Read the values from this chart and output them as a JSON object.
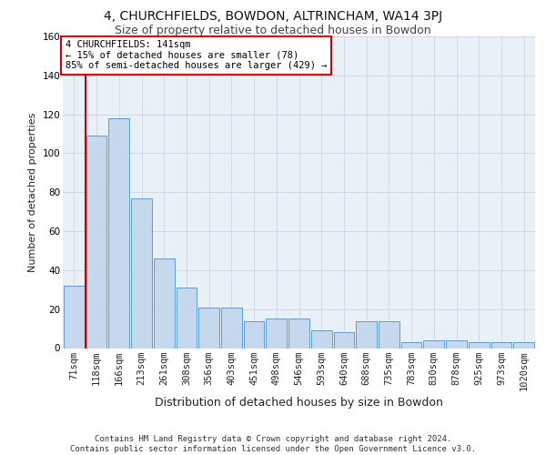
{
  "title1": "4, CHURCHFIELDS, BOWDON, ALTRINCHAM, WA14 3PJ",
  "title2": "Size of property relative to detached houses in Bowdon",
  "xlabel": "Distribution of detached houses by size in Bowdon",
  "ylabel": "Number of detached properties",
  "categories": [
    "71sqm",
    "118sqm",
    "166sqm",
    "213sqm",
    "261sqm",
    "308sqm",
    "356sqm",
    "403sqm",
    "451sqm",
    "498sqm",
    "546sqm",
    "593sqm",
    "640sqm",
    "688sqm",
    "735sqm",
    "783sqm",
    "830sqm",
    "878sqm",
    "925sqm",
    "973sqm",
    "1020sqm"
  ],
  "values": [
    32,
    109,
    118,
    77,
    46,
    31,
    21,
    21,
    14,
    15,
    15,
    9,
    8,
    14,
    14,
    3,
    4,
    4,
    3,
    3,
    3
  ],
  "bar_color": "#c5d8ed",
  "bar_edge_color": "#5b9bd5",
  "grid_color": "#d0d8e4",
  "background_color": "#eaf0f8",
  "vline_color": "#cc0000",
  "vline_pos": 0.5,
  "annotation_text": "4 CHURCHFIELDS: 141sqm\n← 15% of detached houses are smaller (78)\n85% of semi-detached houses are larger (429) →",
  "annotation_box_facecolor": "#ffffff",
  "annotation_border_color": "#cc0000",
  "footnote": "Contains HM Land Registry data © Crown copyright and database right 2024.\nContains public sector information licensed under the Open Government Licence v3.0.",
  "ylim": [
    0,
    160
  ],
  "yticks": [
    0,
    20,
    40,
    60,
    80,
    100,
    120,
    140,
    160
  ],
  "title1_fontsize": 10,
  "title2_fontsize": 9,
  "xlabel_fontsize": 9,
  "ylabel_fontsize": 8,
  "tick_fontsize": 7.5,
  "footnote_fontsize": 6.5,
  "ann_fontsize": 7.5
}
